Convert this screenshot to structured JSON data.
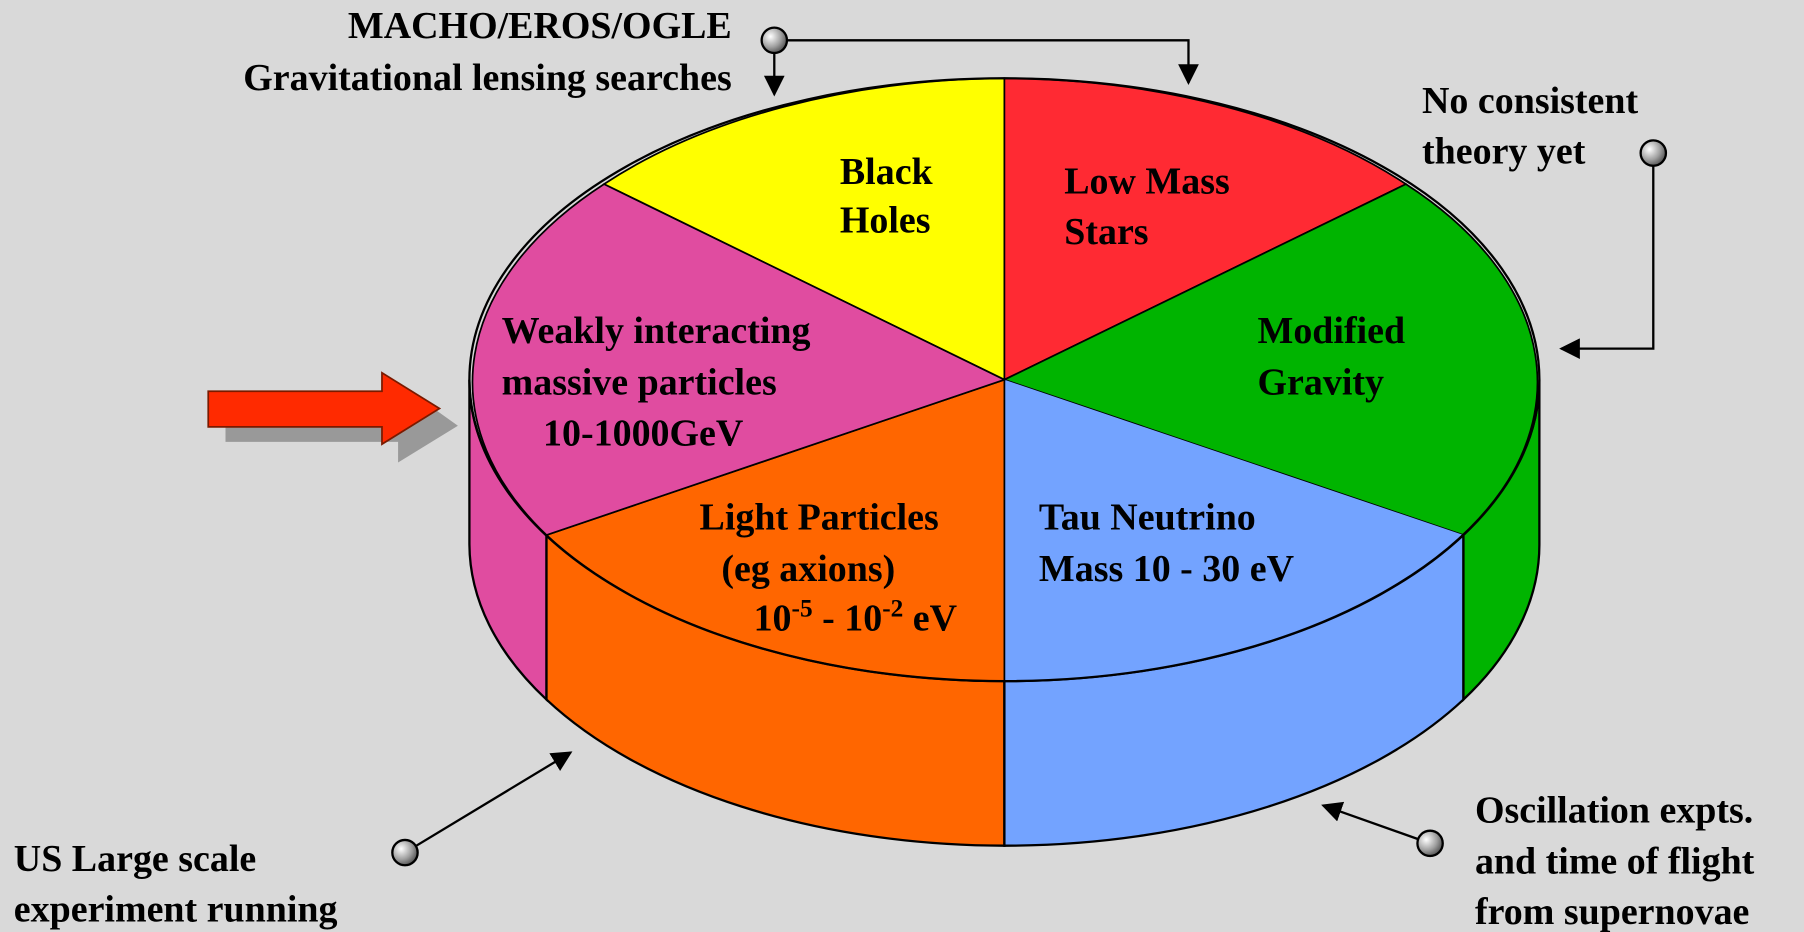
{
  "slices": [
    {
      "lines": [
        "Black",
        "Holes"
      ]
    },
    {
      "lines": [
        "Low Mass",
        "Stars"
      ]
    },
    {
      "lines": [
        "Modified",
        "Gravity"
      ]
    },
    {
      "lines": [
        "Tau Neutrino",
        "Mass 10 - 30 eV"
      ]
    },
    {
      "lines": [
        "Light Particles",
        "(eg axions)"
      ],
      "range": [
        "10",
        "-5",
        " - 10",
        "-2",
        " eV"
      ]
    },
    {
      "lines": [
        "Weakly interacting",
        "massive particles",
        "10-1000GeV"
      ]
    }
  ],
  "annotations": [
    {
      "lines": [
        "MACHO/EROS/OGLE",
        "Gravitational lensing searches"
      ]
    },
    {
      "lines": [
        "No consistent",
        "theory yet"
      ]
    },
    {
      "lines": [
        "US Large scale",
        "experiment running"
      ]
    },
    {
      "lines": [
        "Oscillation expts.",
        "and time of flight",
        "from supernovae"
      ]
    }
  ]
}
